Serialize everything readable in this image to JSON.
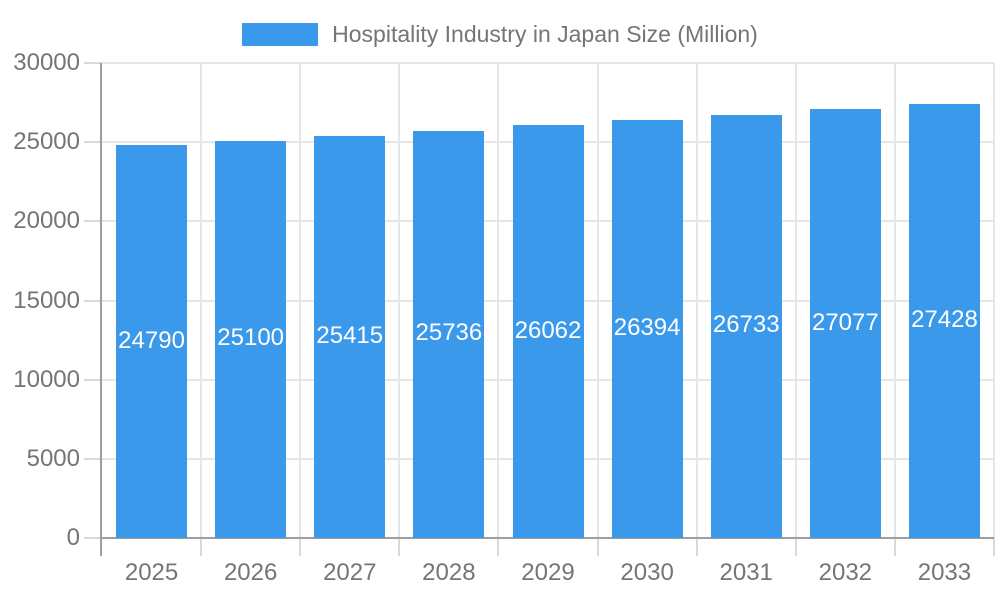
{
  "legend": {
    "label": "Hospitality Industry in Japan Size (Million)"
  },
  "chart_data": {
    "type": "bar",
    "title": "Hospitality Industry in Japan Size (Million)",
    "categories": [
      "2025",
      "2026",
      "2027",
      "2028",
      "2029",
      "2030",
      "2031",
      "2032",
      "2033"
    ],
    "values": [
      24790,
      25100,
      25415,
      25736,
      26062,
      26394,
      26733,
      27077,
      27428
    ],
    "value_labels": [
      "24790",
      "25100",
      "25415",
      "25736",
      "26062",
      "26394",
      "26733",
      "27077",
      "27428"
    ],
    "xlabel": "",
    "ylabel": "",
    "ylim": [
      0,
      30000
    ],
    "yticks": [
      0,
      5000,
      10000,
      15000,
      20000,
      25000,
      30000
    ],
    "ytick_labels": [
      "0",
      "5000",
      "10000",
      "15000",
      "20000",
      "25000",
      "30000"
    ],
    "grid": true,
    "legend_position": "top-center",
    "colors": {
      "bar": "#3B99EC",
      "bar_label_text": "#ffffff",
      "axis_text": "#757575",
      "legend_text": "#757575",
      "gridline": "#e6e6e6",
      "axis_line": "#9e9e9e",
      "tick": "#d9d9d9",
      "background": "#ffffff"
    }
  }
}
